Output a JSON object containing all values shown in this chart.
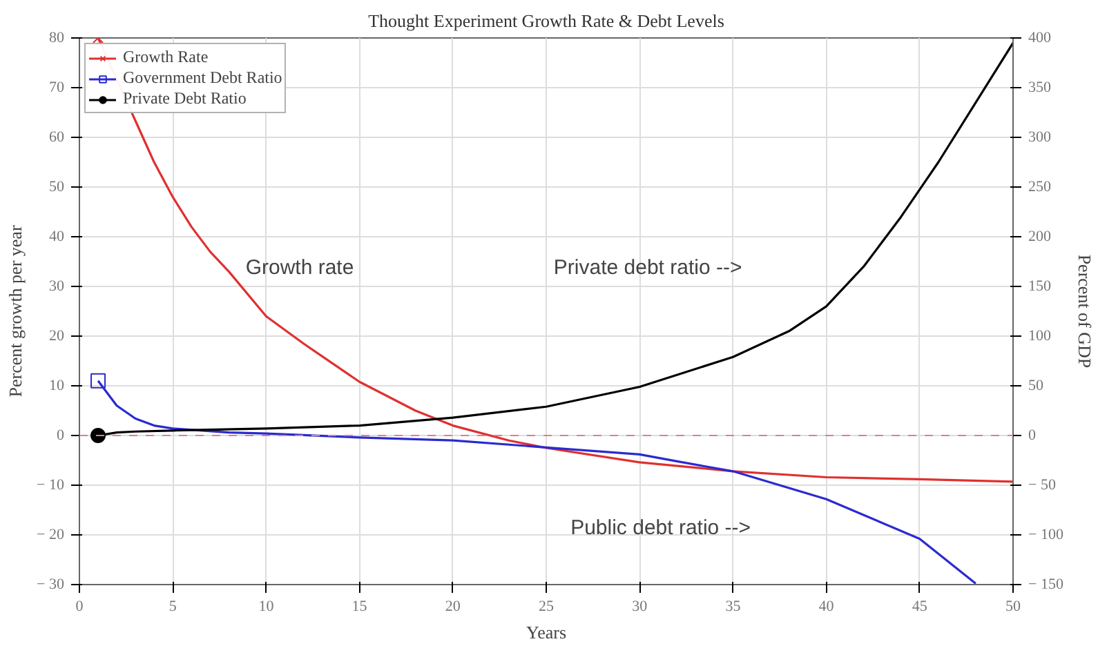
{
  "chart_data": {
    "type": "line",
    "title": "Thought Experiment Growth Rate & Debt Levels",
    "xlabel": "Years",
    "ylabel": "Percent growth per year",
    "y2label": "Percent of GDP",
    "xlim": [
      0,
      50
    ],
    "xticks": [
      0,
      5,
      10,
      15,
      20,
      25,
      30,
      35,
      40,
      45,
      50
    ],
    "ylim": [
      -30,
      80
    ],
    "yticks": [
      {
        "value": -30,
        "label": "− 30"
      },
      {
        "value": -20,
        "label": "− 20"
      },
      {
        "value": -10,
        "label": "− 10"
      },
      0,
      10,
      20,
      30,
      40,
      50,
      60,
      70,
      80
    ],
    "y2lim": [
      -150,
      400
    ],
    "y2ticks": [
      {
        "value": -150,
        "label": "− 150"
      },
      {
        "value": -100,
        "label": "− 100"
      },
      {
        "value": -50,
        "label": "− 50"
      },
      0,
      50,
      100,
      150,
      200,
      250,
      300,
      350,
      400
    ],
    "grid": true,
    "legend": "top left",
    "line_style": "solid",
    "series": [
      {
        "name": "Growth Rate",
        "color": "#e03030",
        "x": [
          1,
          4,
          5,
          6,
          7,
          8,
          10,
          12,
          15,
          18,
          20,
          23,
          25,
          30,
          35,
          40,
          45,
          50
        ],
        "values": [
          80,
          55,
          48,
          42,
          37,
          33,
          24,
          18.5,
          10.8,
          5,
          2,
          -1,
          -2.5,
          -5.4,
          -7.2,
          -8.4,
          -8.8,
          -9.3
        ]
      },
      {
        "name": "Government Debt Ratio",
        "color": "#2a2ad0",
        "axis": "y2",
        "x": [
          1,
          2,
          3,
          4,
          5,
          8,
          10,
          15,
          20,
          25,
          30,
          32,
          35,
          40,
          45,
          48
        ],
        "values": [
          55,
          30,
          17,
          10,
          7,
          3,
          2,
          -2,
          -5,
          -12,
          -19,
          -26,
          -36,
          -64,
          -104,
          -149
        ]
      },
      {
        "name": "Private Debt Ratio",
        "color": "#000000",
        "axis": "y2",
        "x": [
          1,
          2,
          3,
          5,
          10,
          15,
          20,
          25,
          30,
          35,
          38,
          40,
          42,
          44,
          46,
          48,
          50
        ],
        "values": [
          0,
          3,
          4,
          5,
          7,
          10,
          18,
          29,
          49,
          79,
          105,
          130,
          170,
          220,
          275,
          335,
          395
        ]
      },
      {
        "type": "scatter",
        "color": "#e03030",
        "marker": "cross",
        "x": [
          1
        ],
        "values": [
          80
        ]
      },
      {
        "type": "scatter",
        "color": "#2a2ad0",
        "marker": "square",
        "axis": "y2",
        "x": [
          1
        ],
        "values": [
          55
        ]
      },
      {
        "type": "scatter",
        "color": "#000000",
        "marker": "circle",
        "axis": "y2",
        "x": [
          1
        ],
        "values": [
          0
        ]
      }
    ],
    "ref_lines": [
      {
        "axis": "y",
        "value": 0,
        "color": "#e08080",
        "line_style": "dashed"
      }
    ],
    "annotations": [
      "Growth rate",
      "Private debt ratio -->",
      "Public debt ratio -->"
    ]
  }
}
